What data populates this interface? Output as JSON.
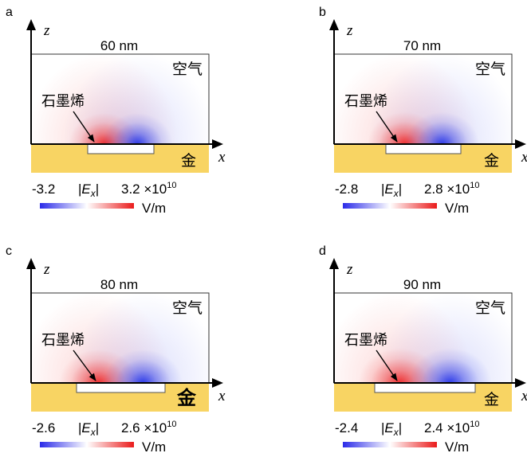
{
  "axis_labels": {
    "z": "z",
    "x": "x"
  },
  "region_labels": {
    "air": "空气",
    "graphene": "石墨烯"
  },
  "field_label": {
    "bar_left": "|",
    "E": "E",
    "sub": "x",
    "bar_right": "|"
  },
  "unit": "V/m",
  "scale_exponent_prefix": "×10",
  "scale_exponent": "10",
  "colormap": {
    "negative": "#2233ee",
    "zero": "#ffffff",
    "positive": "#ee2222",
    "gold": "#f8d463"
  },
  "panels": [
    {
      "letter": "a",
      "width_label": "60 nm",
      "width_nm": 60,
      "min": "-3.2",
      "max": "3.2",
      "gold_label": "金"
    },
    {
      "letter": "b",
      "width_label": "70 nm",
      "width_nm": 70,
      "min": "-2.8",
      "max": "2.8",
      "gold_label": "金"
    },
    {
      "letter": "c",
      "width_label": "80 nm",
      "width_nm": 80,
      "min": "-2.6",
      "max": "2.6",
      "gold_label": "金"
    },
    {
      "letter": "d",
      "width_label": "90 nm",
      "width_nm": 90,
      "min": "-2.4",
      "max": "2.4",
      "gold_label": "金"
    }
  ]
}
